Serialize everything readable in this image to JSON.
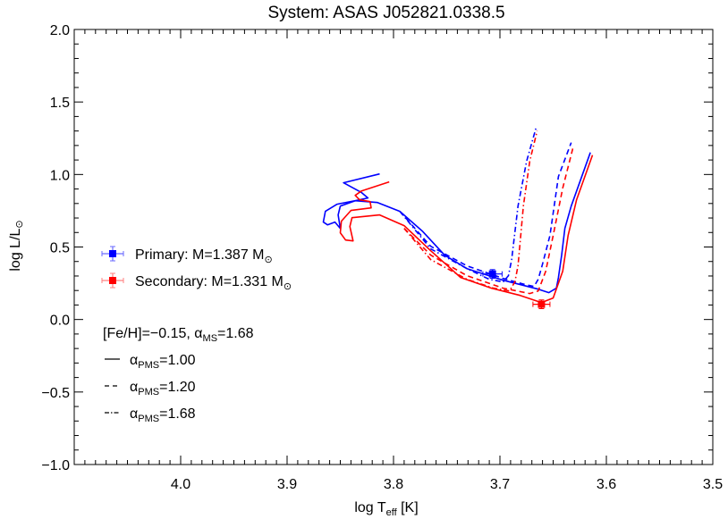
{
  "chart_data": {
    "type": "line",
    "title": "System: ASAS J052821.0338.5",
    "xlabel": {
      "main": "log T",
      "sub": "eff",
      "unit": " [K]"
    },
    "ylabel": {
      "main": "log L/L",
      "sun": "⊙"
    },
    "xlim": [
      4.1,
      3.5
    ],
    "x_reversed": true,
    "ylim": [
      -1.0,
      2.0
    ],
    "x_ticks": [
      "4.0",
      "3.9",
      "3.8",
      "3.7",
      "3.6",
      "3.5"
    ],
    "x_tick_values": [
      4.0,
      3.9,
      3.8,
      3.7,
      3.6,
      3.5
    ],
    "y_ticks": [
      "−1.0",
      "−0.5",
      "0.0",
      "0.5",
      "1.0",
      "1.5",
      "2.0"
    ],
    "y_tick_values": [
      -1.0,
      -0.5,
      0.0,
      0.5,
      1.0,
      1.5,
      2.0
    ],
    "grid": false,
    "colors": {
      "primary": "#0000ff",
      "secondary": "#ff0000",
      "secondary_errorbar": "#ff8080"
    },
    "points": [
      {
        "name": "Primary",
        "x": 3.707,
        "y": 0.314,
        "xerr": 0.009,
        "yerr": 0.03,
        "color": "#0000ff"
      },
      {
        "name": "Secondary",
        "x": 3.661,
        "y": 0.105,
        "xerr": 0.008,
        "yerr": 0.03,
        "color": "#ff0000"
      }
    ],
    "series": [
      {
        "star": "primary",
        "alpha_pms": "1.00",
        "style": "solid",
        "color": "#0000ff",
        "points": [
          [
            3.813,
            1.004
          ],
          [
            3.847,
            0.943
          ],
          [
            3.83,
            0.875
          ],
          [
            3.824,
            0.838
          ],
          [
            3.836,
            0.819
          ],
          [
            3.853,
            0.795
          ],
          [
            3.864,
            0.746
          ],
          [
            3.866,
            0.672
          ],
          [
            3.862,
            0.653
          ],
          [
            3.855,
            0.672
          ],
          [
            3.85,
            0.628
          ],
          [
            3.852,
            0.721
          ],
          [
            3.85,
            0.782
          ],
          [
            3.836,
            0.819
          ],
          [
            3.815,
            0.807
          ],
          [
            3.794,
            0.746
          ],
          [
            3.773,
            0.61
          ],
          [
            3.752,
            0.444
          ],
          [
            3.731,
            0.351
          ],
          [
            3.697,
            0.271
          ],
          [
            3.664,
            0.209
          ],
          [
            3.654,
            0.185
          ],
          [
            3.647,
            0.216
          ],
          [
            3.645,
            0.29
          ],
          [
            3.642,
            0.444
          ],
          [
            3.639,
            0.628
          ],
          [
            3.633,
            0.782
          ],
          [
            3.624,
            0.967
          ],
          [
            3.615,
            1.152
          ]
        ]
      },
      {
        "star": "secondary",
        "alpha_pms": "1.00",
        "style": "solid",
        "color": "#ff0000",
        "points": [
          [
            3.804,
            0.949
          ],
          [
            3.83,
            0.887
          ],
          [
            3.836,
            0.856
          ],
          [
            3.832,
            0.826
          ],
          [
            3.822,
            0.813
          ],
          [
            3.821,
            0.77
          ],
          [
            3.84,
            0.752
          ],
          [
            3.849,
            0.678
          ],
          [
            3.85,
            0.598
          ],
          [
            3.845,
            0.548
          ],
          [
            3.838,
            0.542
          ],
          [
            3.841,
            0.641
          ],
          [
            3.839,
            0.702
          ],
          [
            3.813,
            0.721
          ],
          [
            3.79,
            0.647
          ],
          [
            3.765,
            0.474
          ],
          [
            3.737,
            0.29
          ],
          [
            3.708,
            0.216
          ],
          [
            3.681,
            0.166
          ],
          [
            3.661,
            0.117
          ],
          [
            3.65,
            0.148
          ],
          [
            3.641,
            0.333
          ],
          [
            3.636,
            0.579
          ],
          [
            3.628,
            0.826
          ],
          [
            3.613,
            1.134
          ]
        ]
      },
      {
        "star": "primary",
        "alpha_pms": "1.20",
        "style": "dashed",
        "color": "#0000ff",
        "points": [
          [
            3.794,
            0.746
          ],
          [
            3.765,
            0.505
          ],
          [
            3.731,
            0.37
          ],
          [
            3.697,
            0.283
          ],
          [
            3.676,
            0.24
          ],
          [
            3.668,
            0.228
          ],
          [
            3.664,
            0.277
          ],
          [
            3.66,
            0.382
          ],
          [
            3.653,
            0.579
          ],
          [
            3.645,
            0.986
          ],
          [
            3.633,
            1.22
          ]
        ]
      },
      {
        "star": "secondary",
        "alpha_pms": "1.20",
        "style": "dashed",
        "color": "#ff0000",
        "points": [
          [
            3.79,
            0.628
          ],
          [
            3.765,
            0.444
          ],
          [
            3.731,
            0.302
          ],
          [
            3.697,
            0.216
          ],
          [
            3.672,
            0.179
          ],
          [
            3.664,
            0.197
          ],
          [
            3.657,
            0.333
          ],
          [
            3.65,
            0.579
          ],
          [
            3.641,
            0.906
          ],
          [
            3.631,
            1.195
          ]
        ]
      },
      {
        "star": "primary",
        "alpha_pms": "1.68",
        "style": "dashdot",
        "color": "#0000ff",
        "points": [
          [
            3.794,
            0.746
          ],
          [
            3.765,
            0.487
          ],
          [
            3.731,
            0.351
          ],
          [
            3.71,
            0.277
          ],
          [
            3.697,
            0.259
          ],
          [
            3.692,
            0.302
          ],
          [
            3.689,
            0.413
          ],
          [
            3.683,
            0.782
          ],
          [
            3.675,
            1.091
          ],
          [
            3.666,
            1.325
          ]
        ]
      },
      {
        "star": "secondary",
        "alpha_pms": "1.68",
        "style": "dashdot",
        "color": "#ff0000",
        "points": [
          [
            3.79,
            0.628
          ],
          [
            3.765,
            0.413
          ],
          [
            3.731,
            0.277
          ],
          [
            3.706,
            0.216
          ],
          [
            3.691,
            0.197
          ],
          [
            3.686,
            0.259
          ],
          [
            3.683,
            0.37
          ],
          [
            3.678,
            0.782
          ],
          [
            3.672,
            1.091
          ],
          [
            3.665,
            1.3
          ]
        ]
      }
    ],
    "legend": {
      "placement": "left",
      "primary": {
        "label": "Primary: M=1.387 M",
        "sun": "⊙"
      },
      "secondary": {
        "label": "Secondary: M=1.331 M",
        "sun": "⊙"
      },
      "metallicity": {
        "text": "[Fe/H]=−0.15, ",
        "alpha": "α",
        "sub": "MS",
        "value": "=1.68"
      },
      "styles": [
        {
          "style": "solid",
          "alpha": "α",
          "sub": "PMS",
          "value": "=1.00"
        },
        {
          "style": "dashed",
          "alpha": "α",
          "sub": "PMS",
          "value": "=1.20"
        },
        {
          "style": "dashdot",
          "alpha": "α",
          "sub": "PMS",
          "value": "=1.68"
        }
      ]
    }
  }
}
